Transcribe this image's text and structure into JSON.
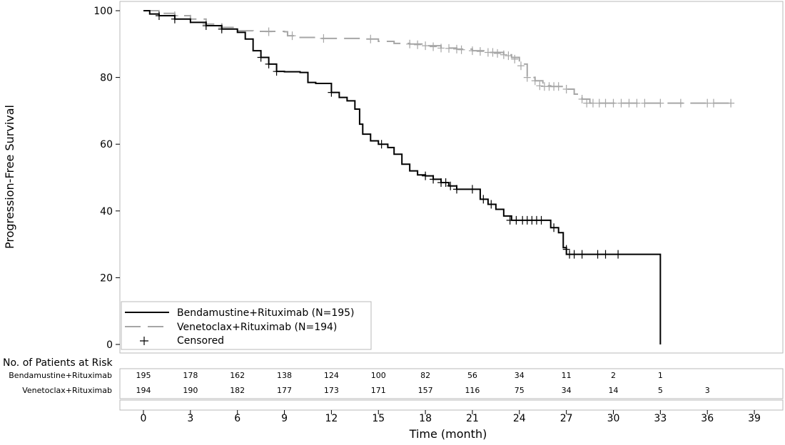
{
  "chart_data": {
    "type": "line",
    "subtype": "kaplan-meier",
    "ylabel": "Progression-Free Survival",
    "xlabel": "Time (month)",
    "xlim": [
      -1.5,
      40.5
    ],
    "ylim": [
      0,
      100
    ],
    "x_ticks": [
      "0",
      "3",
      "6",
      "9",
      "12",
      "15",
      "18",
      "21",
      "24",
      "27",
      "30",
      "33",
      "36",
      "39"
    ],
    "y_ticks": [
      "0",
      "20",
      "40",
      "60",
      "80",
      "100"
    ],
    "grid": false,
    "legend_position": "bottom-left",
    "censor_marker": "+",
    "legend": {
      "series_1": "Bendamustine+Rituximab (N=195)",
      "series_2": "Venetoclax+Rituximab (N=194)",
      "censored": "Censored"
    },
    "series": [
      {
        "name": "Bendamustine+Rituximab (N=195)",
        "color": "#000000",
        "line_style": "solid",
        "points": [
          [
            0,
            100
          ],
          [
            0.4,
            99
          ],
          [
            1,
            98.5
          ],
          [
            2,
            97.5
          ],
          [
            3,
            96.5
          ],
          [
            4,
            95.5
          ],
          [
            5,
            94.5
          ],
          [
            6,
            93.5
          ],
          [
            6.5,
            91.5
          ],
          [
            7,
            88
          ],
          [
            7.5,
            86
          ],
          [
            8,
            84
          ],
          [
            8.5,
            81.8
          ],
          [
            9,
            81.7
          ],
          [
            10,
            81.5
          ],
          [
            10.5,
            78.5
          ],
          [
            11,
            78.2
          ],
          [
            12,
            75.5
          ],
          [
            12.5,
            74
          ],
          [
            13,
            73
          ],
          [
            13.5,
            70.5
          ],
          [
            13.8,
            66
          ],
          [
            14,
            63
          ],
          [
            14.5,
            61
          ],
          [
            15,
            60
          ],
          [
            15.6,
            59
          ],
          [
            16,
            57
          ],
          [
            16.5,
            54
          ],
          [
            17,
            52
          ],
          [
            17.5,
            50.8
          ],
          [
            18,
            50.5
          ],
          [
            18.5,
            49.5
          ],
          [
            19,
            48.5
          ],
          [
            19.5,
            47.5
          ],
          [
            20,
            46.5
          ],
          [
            21,
            46.5
          ],
          [
            21.5,
            43.5
          ],
          [
            22,
            42
          ],
          [
            22.5,
            40.5
          ],
          [
            23,
            38.5
          ],
          [
            23.5,
            37.2
          ],
          [
            25.5,
            37.2
          ],
          [
            26,
            35
          ],
          [
            26.5,
            33.5
          ],
          [
            26.8,
            29
          ],
          [
            27,
            27
          ],
          [
            33,
            27
          ],
          [
            33,
            0
          ]
        ],
        "censored": [
          [
            1,
            98.5
          ],
          [
            2,
            97.5
          ],
          [
            4,
            95.5
          ],
          [
            5,
            94.5
          ],
          [
            7.5,
            86
          ],
          [
            8,
            84
          ],
          [
            8.5,
            81.8
          ],
          [
            12,
            75.5
          ],
          [
            15.2,
            60
          ],
          [
            18,
            50.5
          ],
          [
            18.5,
            49.5
          ],
          [
            19,
            48.5
          ],
          [
            19.3,
            48.5
          ],
          [
            19.6,
            47.5
          ],
          [
            20,
            46.5
          ],
          [
            21,
            46.5
          ],
          [
            21.7,
            43.5
          ],
          [
            22.2,
            42
          ],
          [
            23.4,
            37.2
          ],
          [
            23.8,
            37.2
          ],
          [
            24.2,
            37.2
          ],
          [
            24.5,
            37.2
          ],
          [
            24.8,
            37.2
          ],
          [
            25.1,
            37.2
          ],
          [
            25.4,
            37.2
          ],
          [
            26.2,
            35
          ],
          [
            27,
            28.5
          ],
          [
            27.2,
            27
          ],
          [
            27.5,
            27
          ],
          [
            28,
            27
          ],
          [
            29,
            27
          ],
          [
            29.5,
            27
          ],
          [
            30.3,
            27
          ]
        ]
      },
      {
        "name": "Venetoclax+Rituximab (N=194)",
        "color": "#a6a6a6",
        "line_style": "dashed",
        "points": [
          [
            0,
            100
          ],
          [
            1,
            99.2
          ],
          [
            2,
            98.5
          ],
          [
            3,
            97.5
          ],
          [
            4,
            96
          ],
          [
            5,
            95
          ],
          [
            6,
            94
          ],
          [
            7,
            93.8
          ],
          [
            9,
            93.7
          ],
          [
            9.2,
            92.5
          ],
          [
            10,
            92
          ],
          [
            11,
            91.7
          ],
          [
            14,
            91.5
          ],
          [
            15,
            90.8
          ],
          [
            16,
            90.2
          ],
          [
            17,
            90
          ],
          [
            18,
            89.5
          ],
          [
            19,
            88.8
          ],
          [
            20,
            88.5
          ],
          [
            21,
            88
          ],
          [
            22,
            87.5
          ],
          [
            23,
            86.8
          ],
          [
            23.5,
            86
          ],
          [
            24,
            84
          ],
          [
            24.5,
            80
          ],
          [
            25,
            79
          ],
          [
            25.5,
            77.5
          ],
          [
            26,
            77.3
          ],
          [
            27,
            76.5
          ],
          [
            27.5,
            75
          ],
          [
            28,
            73.5
          ],
          [
            28.5,
            72.3
          ],
          [
            37.5,
            72.3
          ]
        ],
        "censored": [
          [
            2,
            98.5
          ],
          [
            3,
            97.5
          ],
          [
            4,
            96
          ],
          [
            5,
            95
          ],
          [
            8,
            93.7
          ],
          [
            9.5,
            92.5
          ],
          [
            11.5,
            91.7
          ],
          [
            14.5,
            91.5
          ],
          [
            17,
            90
          ],
          [
            17.5,
            89.8
          ],
          [
            18,
            89.5
          ],
          [
            18.5,
            89.2
          ],
          [
            19,
            88.8
          ],
          [
            19.5,
            88.7
          ],
          [
            20,
            88.5
          ],
          [
            20.3,
            88.3
          ],
          [
            21,
            88
          ],
          [
            21.5,
            87.8
          ],
          [
            22,
            87.5
          ],
          [
            22.3,
            87.5
          ],
          [
            22.6,
            87.2
          ],
          [
            23,
            86.8
          ],
          [
            23.3,
            86.5
          ],
          [
            23.7,
            85.5
          ],
          [
            24.1,
            83.5
          ],
          [
            24.5,
            80
          ],
          [
            25,
            79
          ],
          [
            25.3,
            77.5
          ],
          [
            25.6,
            77.3
          ],
          [
            25.9,
            77.3
          ],
          [
            26.2,
            77.3
          ],
          [
            26.5,
            77.3
          ],
          [
            27,
            76.5
          ],
          [
            28,
            73.5
          ],
          [
            28.3,
            72.3
          ],
          [
            28.7,
            72.3
          ],
          [
            29.1,
            72.3
          ],
          [
            29.5,
            72.3
          ],
          [
            30,
            72.3
          ],
          [
            30.5,
            72.3
          ],
          [
            31,
            72.3
          ],
          [
            31.5,
            72.3
          ],
          [
            32,
            72.3
          ],
          [
            33,
            72.3
          ],
          [
            34.3,
            72.3
          ],
          [
            36,
            72.3
          ],
          [
            36.4,
            72.3
          ],
          [
            37.5,
            72.3
          ]
        ]
      }
    ],
    "risk_table": {
      "title": "No. of Patients at Risk",
      "rows": [
        {
          "label": "Bendamustine+Rituximab",
          "values": [
            "195",
            "178",
            "162",
            "138",
            "124",
            "100",
            "82",
            "56",
            "34",
            "11",
            "2",
            "1"
          ]
        },
        {
          "label": "Venetoclax+Rituximab",
          "values": [
            "194",
            "190",
            "182",
            "177",
            "173",
            "171",
            "157",
            "116",
            "75",
            "34",
            "14",
            "5",
            "3"
          ]
        }
      ]
    }
  }
}
